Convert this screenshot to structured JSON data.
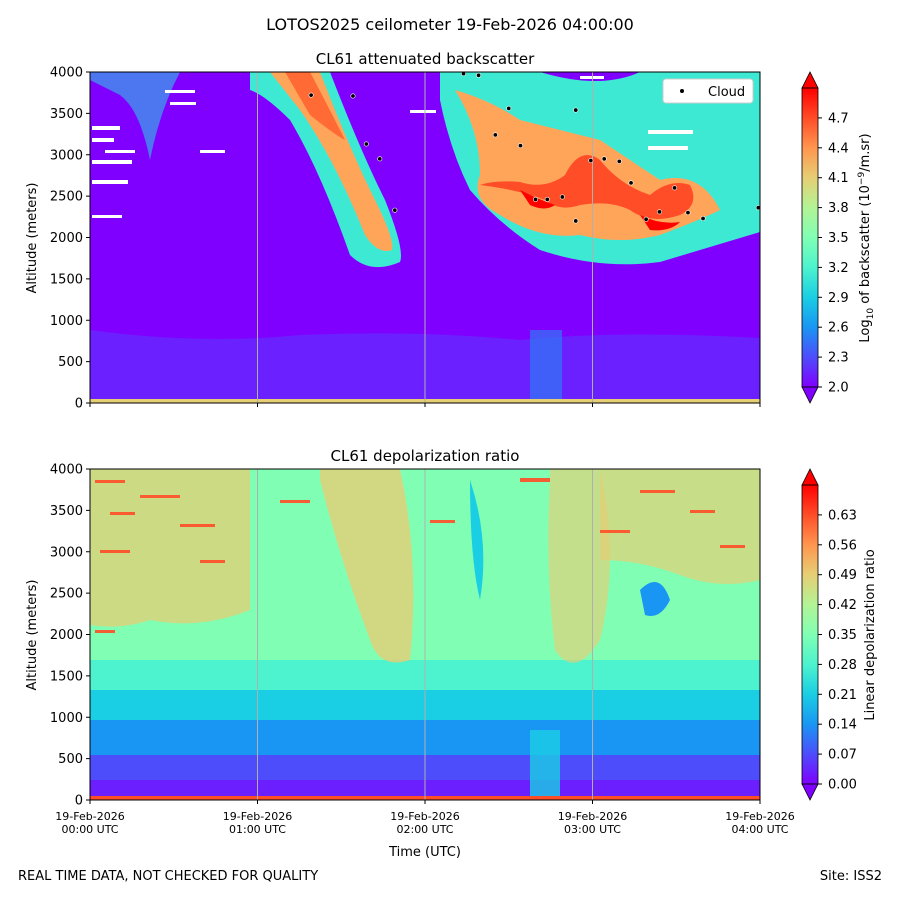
{
  "suptitle": "LOTOS2025 ceilometer 19-Feb-2026 04:00:00",
  "footer": {
    "left": "REAL TIME DATA, NOT CHECKED FOR QUALITY",
    "right": "Site: ISS2"
  },
  "chart_data": [
    {
      "type": "heatmap",
      "title": "CL61 attenuated backscatter",
      "xlabel": "",
      "ylabel": "Altitude (meters)",
      "x_ticks": [
        "19-Feb-2026\n00:00 UTC",
        "19-Feb-2026\n01:00 UTC",
        "19-Feb-2026\n02:00 UTC",
        "19-Feb-2026\n03:00 UTC",
        "19-Feb-2026\n04:00 UTC"
      ],
      "x_tick_labels_visible": false,
      "xlim_hours": [
        0,
        4
      ],
      "ylim": [
        0,
        4000
      ],
      "y_ticks": [
        0,
        500,
        1000,
        1500,
        2000,
        2500,
        3000,
        3500,
        4000
      ],
      "colorbar": {
        "label": "Log10 of backscatter (10^-9/m.sr)",
        "label_parts": {
          "a": "Log",
          "b": "10",
          "c": " of backscatter (10",
          "d": "−9",
          "e": "/m.sr)"
        },
        "range": [
          2.0,
          5.0
        ],
        "ticks": [
          "2.0",
          "2.3",
          "2.6",
          "2.9",
          "3.2",
          "3.5",
          "3.8",
          "4.1",
          "4.4",
          "4.7"
        ],
        "tick_values": [
          2.0,
          2.3,
          2.6,
          2.9,
          3.2,
          3.5,
          3.8,
          4.1,
          4.4,
          4.7
        ],
        "colormap": "rainbow"
      },
      "legend": {
        "label": "Cloud",
        "placement": "upper right"
      },
      "cloud_points": [
        {
          "t": 1.32,
          "alt": 3720
        },
        {
          "t": 1.57,
          "alt": 3710
        },
        {
          "t": 1.65,
          "alt": 3130
        },
        {
          "t": 1.73,
          "alt": 2950
        },
        {
          "t": 1.82,
          "alt": 2330
        },
        {
          "t": 2.23,
          "alt": 3980
        },
        {
          "t": 2.32,
          "alt": 3960
        },
        {
          "t": 2.42,
          "alt": 3240
        },
        {
          "t": 2.5,
          "alt": 3560
        },
        {
          "t": 2.57,
          "alt": 3110
        },
        {
          "t": 2.66,
          "alt": 2460
        },
        {
          "t": 2.73,
          "alt": 2460
        },
        {
          "t": 2.82,
          "alt": 2490
        },
        {
          "t": 2.9,
          "alt": 3540
        },
        {
          "t": 2.9,
          "alt": 2200
        },
        {
          "t": 2.99,
          "alt": 2930
        },
        {
          "t": 3.07,
          "alt": 2950
        },
        {
          "t": 3.16,
          "alt": 2920
        },
        {
          "t": 3.23,
          "alt": 2660
        },
        {
          "t": 3.32,
          "alt": 2220
        },
        {
          "t": 3.4,
          "alt": 2310
        },
        {
          "t": 3.49,
          "alt": 2600
        },
        {
          "t": 3.57,
          "alt": 2300
        },
        {
          "t": 3.66,
          "alt": 2230
        },
        {
          "t": 3.99,
          "alt": 2360
        }
      ]
    },
    {
      "type": "heatmap",
      "title": "CL61 depolarization ratio",
      "xlabel": "Time (UTC)",
      "ylabel": "Altitude (meters)",
      "x_ticks": [
        "19-Feb-2026\n00:00 UTC",
        "19-Feb-2026\n01:00 UTC",
        "19-Feb-2026\n02:00 UTC",
        "19-Feb-2026\n03:00 UTC",
        "19-Feb-2026\n04:00 UTC"
      ],
      "xlim_hours": [
        0,
        4
      ],
      "ylim": [
        0,
        4000
      ],
      "y_ticks": [
        0,
        500,
        1000,
        1500,
        2000,
        2500,
        3000,
        3500,
        4000
      ],
      "colorbar": {
        "label": "Linear depolarization ratio",
        "range": [
          0.0,
          0.7
        ],
        "ticks": [
          "0.00",
          "0.07",
          "0.14",
          "0.21",
          "0.28",
          "0.35",
          "0.42",
          "0.49",
          "0.56",
          "0.63"
        ],
        "tick_values": [
          0.0,
          0.07,
          0.14,
          0.21,
          0.28,
          0.35,
          0.42,
          0.49,
          0.56,
          0.63
        ],
        "colormap": "rainbow"
      }
    }
  ]
}
